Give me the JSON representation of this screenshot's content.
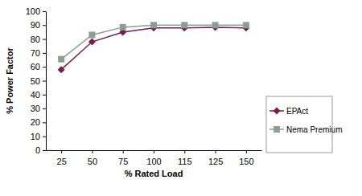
{
  "chart_data": {
    "type": "line",
    "x_label": "% Rated Load",
    "y_label": "% Power Factor",
    "categories": [
      "25",
      "50",
      "75",
      "100",
      "115",
      "125",
      "150"
    ],
    "series": [
      {
        "name": "EPAct",
        "color": "#7a1a4e",
        "marker": "diamond",
        "values": [
          58,
          78,
          85,
          88,
          88,
          88.5,
          88
        ]
      },
      {
        "name": "Nema Premium",
        "color": "#8a9f94",
        "marker": "square",
        "values": [
          65.5,
          83,
          88.5,
          90,
          90,
          90,
          90
        ]
      }
    ],
    "ylim": [
      0,
      100
    ],
    "yticks": [
      0,
      10,
      20,
      30,
      40,
      50,
      60,
      70,
      80,
      90,
      100
    ],
    "grid": false,
    "legend": "right"
  }
}
